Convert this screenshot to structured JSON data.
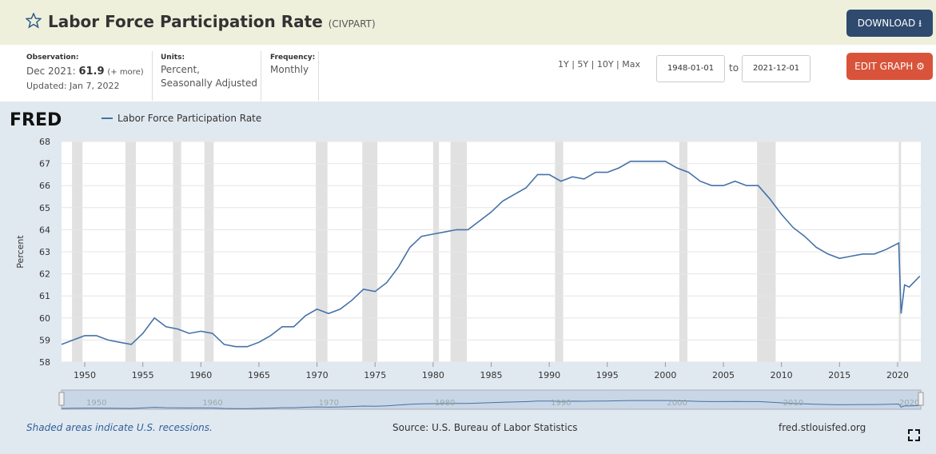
{
  "header": {
    "title": "Labor Force Participation Rate",
    "series_id": "(CIVPART)",
    "download": "DOWNLOAD"
  },
  "info": {
    "observation_label": "Observation:",
    "observation_date": "Dec 2021:",
    "observation_value": "61.9",
    "more": "(+ more)",
    "updated": "Updated: Jan 7, 2022",
    "units_label": "Units:",
    "units_1": "Percent,",
    "units_2": "Seasonally Adjusted",
    "frequency_label": "Frequency:",
    "frequency": "Monthly",
    "ranges": [
      "1Y",
      "5Y",
      "10Y",
      "Max"
    ],
    "start": "1948-01-01",
    "to": "to",
    "end": "2021-12-01",
    "edit": "EDIT GRAPH"
  },
  "chart_data": {
    "type": "line",
    "logo": "FRED",
    "ylabel": "Percent",
    "x": [
      1948,
      1949,
      1950,
      1951,
      1952,
      1953,
      1954,
      1955,
      1956,
      1957,
      1958,
      1959,
      1960,
      1961,
      1962,
      1963,
      1964,
      1965,
      1966,
      1967,
      1968,
      1969,
      1970,
      1971,
      1972,
      1973,
      1974,
      1975,
      1976,
      1977,
      1978,
      1979,
      1980,
      1981,
      1982,
      1983,
      1984,
      1985,
      1986,
      1987,
      1988,
      1989,
      1990,
      1991,
      1992,
      1993,
      1994,
      1995,
      1996,
      1997,
      1998,
      1999,
      2000,
      2001,
      2002,
      2003,
      2004,
      2005,
      2006,
      2007,
      2008,
      2009,
      2010,
      2011,
      2012,
      2013,
      2014,
      2015,
      2016,
      2017,
      2018,
      2019,
      2020.1,
      2020.3,
      2020.6,
      2021,
      2021.92
    ],
    "series": [
      {
        "name": "Labor Force Participation Rate",
        "color": "#4572a7",
        "values": [
          58.8,
          59.0,
          59.2,
          59.2,
          59.0,
          58.9,
          58.8,
          59.3,
          60.0,
          59.6,
          59.5,
          59.3,
          59.4,
          59.3,
          58.8,
          58.7,
          58.7,
          58.9,
          59.2,
          59.6,
          59.6,
          60.1,
          60.4,
          60.2,
          60.4,
          60.8,
          61.3,
          61.2,
          61.6,
          62.3,
          63.2,
          63.7,
          63.8,
          63.9,
          64.0,
          64.0,
          64.4,
          64.8,
          65.3,
          65.6,
          65.9,
          66.5,
          66.5,
          66.2,
          66.4,
          66.3,
          66.6,
          66.6,
          66.8,
          67.1,
          67.1,
          67.1,
          67.1,
          66.8,
          66.6,
          66.2,
          66.0,
          66.0,
          66.2,
          66.0,
          66.0,
          65.4,
          64.7,
          64.1,
          63.7,
          63.2,
          62.9,
          62.7,
          62.8,
          62.9,
          62.9,
          63.1,
          63.4,
          60.2,
          61.5,
          61.4,
          61.9
        ]
      }
    ],
    "recessions": [
      [
        1948.9,
        1949.8
      ],
      [
        1953.5,
        1954.4
      ],
      [
        1957.6,
        1958.3
      ],
      [
        1960.3,
        1961.1
      ],
      [
        1969.9,
        1970.9
      ],
      [
        1973.9,
        1975.2
      ],
      [
        1980.0,
        1980.5
      ],
      [
        1981.5,
        1982.9
      ],
      [
        1990.5,
        1991.2
      ],
      [
        2001.2,
        2001.9
      ],
      [
        2007.9,
        2009.5
      ],
      [
        2020.1,
        2020.3
      ]
    ],
    "xlim": [
      1948,
      2022
    ],
    "xticks": [
      1950,
      1955,
      1960,
      1965,
      1970,
      1975,
      1980,
      1985,
      1990,
      1995,
      2000,
      2005,
      2010,
      2015,
      2020
    ],
    "ylim": [
      58,
      68
    ],
    "yticks": [
      58,
      59,
      60,
      61,
      62,
      63,
      64,
      65,
      66,
      67,
      68
    ],
    "grid": true,
    "navigator_ticks": [
      1950,
      1960,
      1970,
      1980,
      1990,
      2000,
      2010,
      2020
    ],
    "note": "Shaded areas indicate U.S. recessions.",
    "source": "Source: U.S. Bureau of Labor Statistics",
    "site": "fred.stlouisfed.org"
  }
}
